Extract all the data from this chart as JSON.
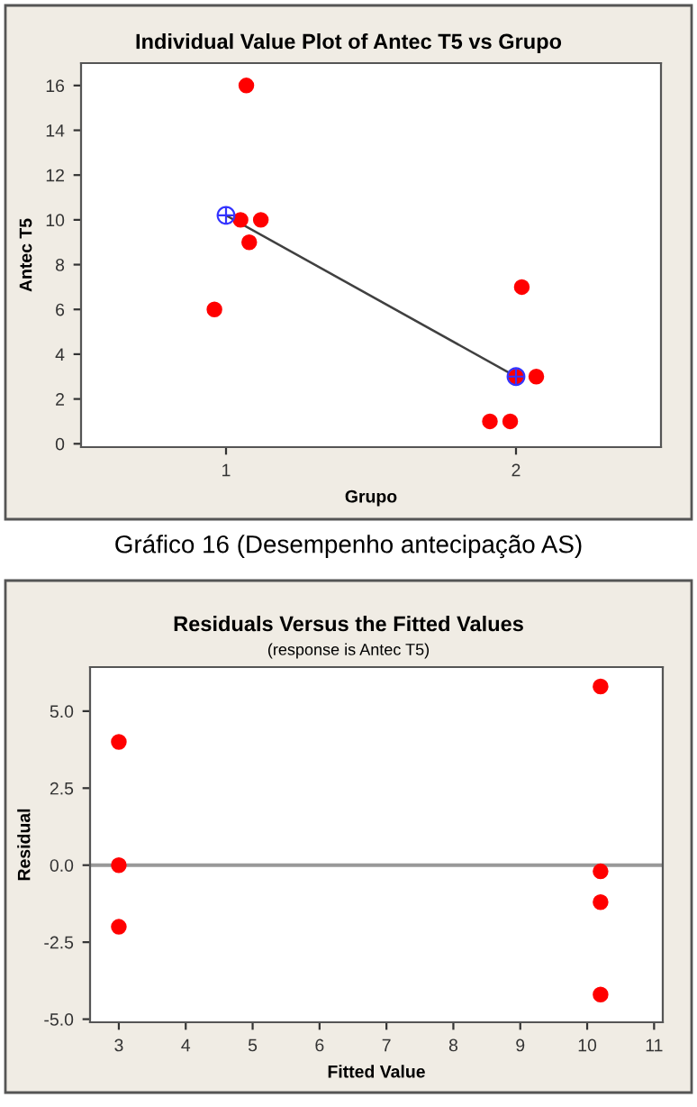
{
  "chart_data": [
    {
      "type": "scatter",
      "title": "Individual Value Plot of Antec T5 vs Grupo",
      "xlabel": "Grupo",
      "ylabel": "Antec T5",
      "series": [
        {
          "color": "#ff0000",
          "marker": "circle",
          "x": [
            0.96,
            1.05,
            1.07,
            1.08,
            1.12,
            1.91,
            1.98,
            2.0,
            2.02,
            2.07
          ],
          "values": [
            6,
            10,
            16,
            9,
            10,
            1,
            1,
            3,
            7,
            3
          ]
        },
        {
          "type": "line",
          "color": "#404040",
          "marker": "none",
          "x": [
            1,
            2
          ],
          "values": [
            10.2,
            3
          ]
        },
        {
          "color": "#3333ff",
          "marker": "cross",
          "x": [
            1,
            2
          ],
          "values": [
            10.2,
            3
          ]
        }
      ],
      "xlim": [
        0.5,
        2.5
      ],
      "xticks": [
        1,
        2
      ],
      "ylim": [
        -0.15,
        17
      ],
      "yticks": [
        0,
        2,
        4,
        6,
        8,
        10,
        12,
        14,
        16
      ],
      "grid": false,
      "legend": false,
      "annotations": [
        "Gráfico 16 (Desempenho antecipação AS)"
      ]
    },
    {
      "type": "scatter",
      "title": "Residuals Versus the Fitted Values",
      "subtitle": "(response is Antec T5)",
      "xlabel": "Fitted Value",
      "ylabel": "Residual",
      "series": [
        {
          "color": "#ff0000",
          "marker": "circle",
          "x": [
            3,
            3,
            3,
            10.2,
            10.2,
            10.2,
            10.2
          ],
          "values": [
            4,
            0,
            -2,
            5.8,
            -0.2,
            -1.2,
            -4.2
          ]
        }
      ],
      "xlim": [
        2.57,
        11.13
      ],
      "xticks": [
        3,
        4,
        5,
        6,
        7,
        8,
        9,
        10,
        11
      ],
      "ylim": [
        -5.1,
        6.43
      ],
      "yticks": [
        {
          "value": -5,
          "label": "-5.0"
        },
        {
          "value": -2.5,
          "label": "-2.5"
        },
        {
          "value": 0,
          "label": "0.0"
        },
        {
          "value": 2.5,
          "label": "2.5"
        },
        {
          "value": 5,
          "label": "5.0"
        }
      ],
      "ref_lines": [
        {
          "axis": "y",
          "value": 0,
          "color": "#999999"
        }
      ],
      "grid": false,
      "legend": false
    }
  ]
}
